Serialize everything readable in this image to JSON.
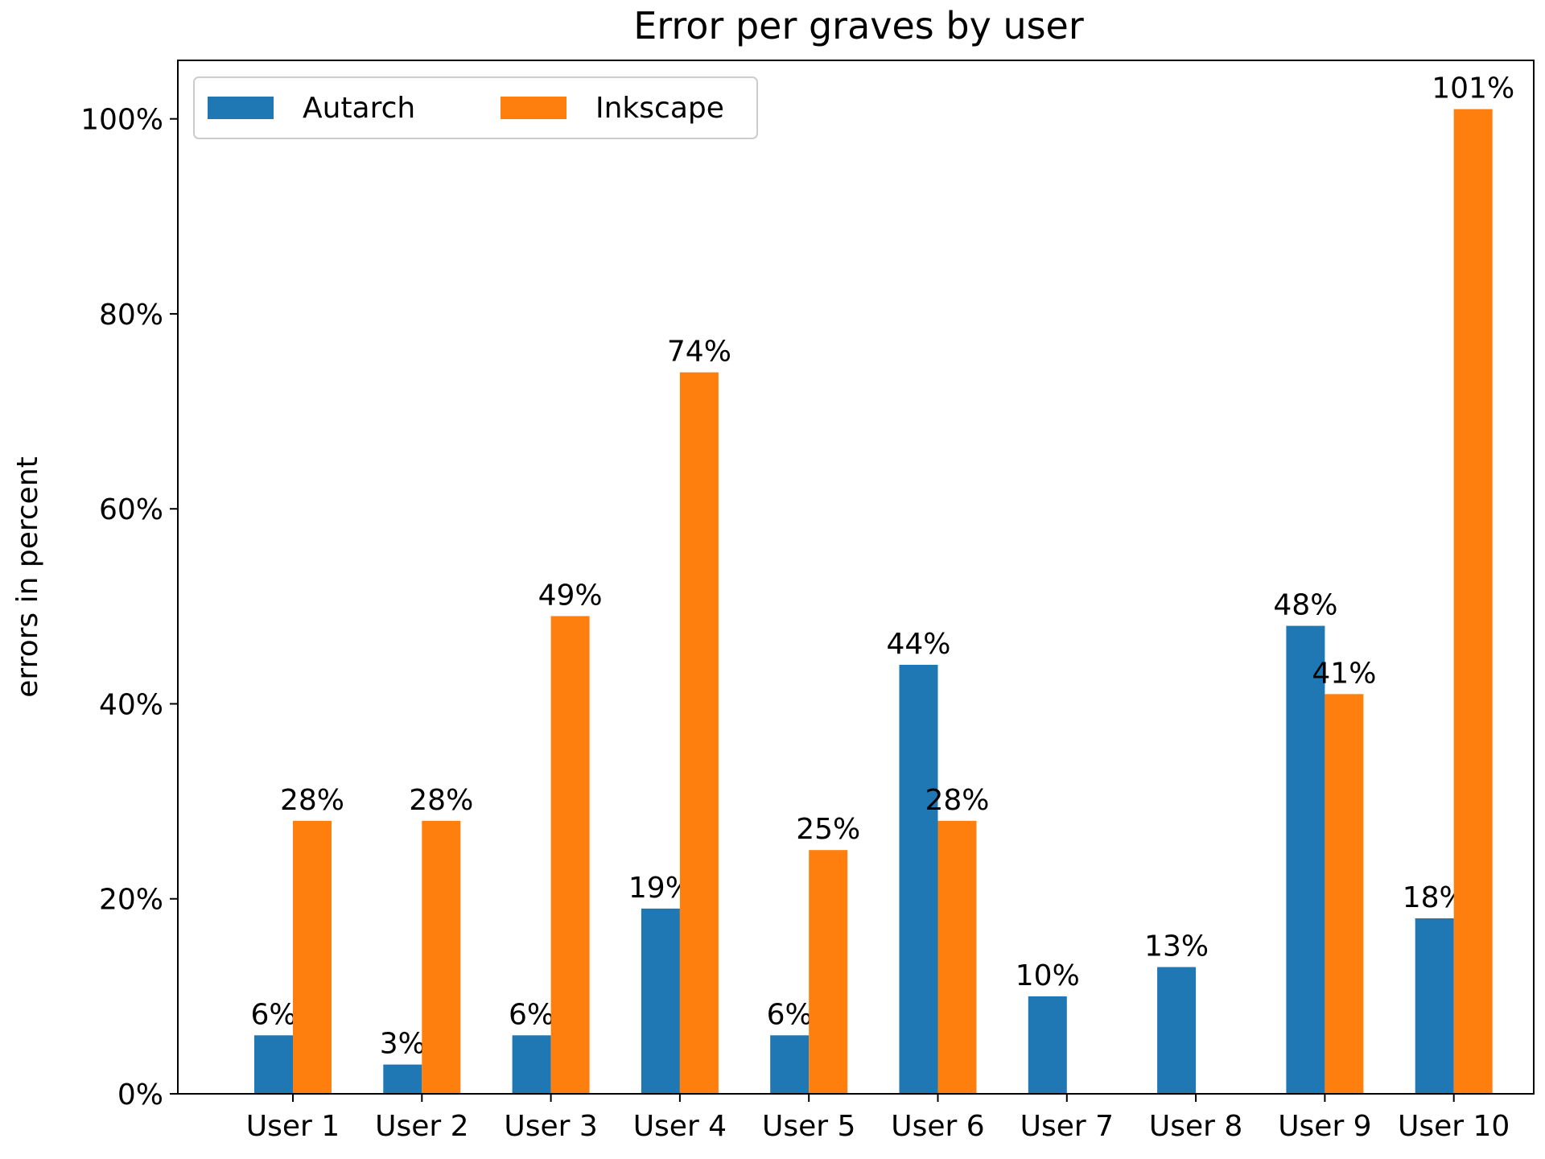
{
  "chart_data": {
    "type": "bar",
    "title": "Error per graves by user",
    "xlabel": "",
    "ylabel": "errors in percent",
    "categories": [
      "User 1",
      "User 2",
      "User 3",
      "User 4",
      "User 5",
      "User 6",
      "User 7",
      "User 8",
      "User 9",
      "User 10"
    ],
    "series": [
      {
        "name": "Autarch",
        "color": "#1f77b4",
        "values": [
          6,
          3,
          6,
          19,
          6,
          44,
          10,
          13,
          48,
          18
        ],
        "labels": [
          "6%",
          "3%",
          "6%",
          "19%",
          "6%",
          "44%",
          "10%",
          "13%",
          "48%",
          "18%"
        ]
      },
      {
        "name": "Inkscape",
        "color": "#ff7f0e",
        "values": [
          28,
          28,
          49,
          74,
          25,
          28,
          0,
          0,
          41,
          101
        ],
        "labels": [
          "28%",
          "28%",
          "49%",
          "74%",
          "25%",
          "28%",
          "",
          "",
          "41%",
          "101%"
        ]
      }
    ],
    "ylim": [
      0,
      106
    ],
    "yticks": [
      0,
      20,
      40,
      60,
      80,
      100
    ],
    "ytick_labels": [
      "0%",
      "20%",
      "40%",
      "60%",
      "80%",
      "100%"
    ],
    "grid": false,
    "legend": {
      "placement": "top-left",
      "columns": 2
    }
  }
}
